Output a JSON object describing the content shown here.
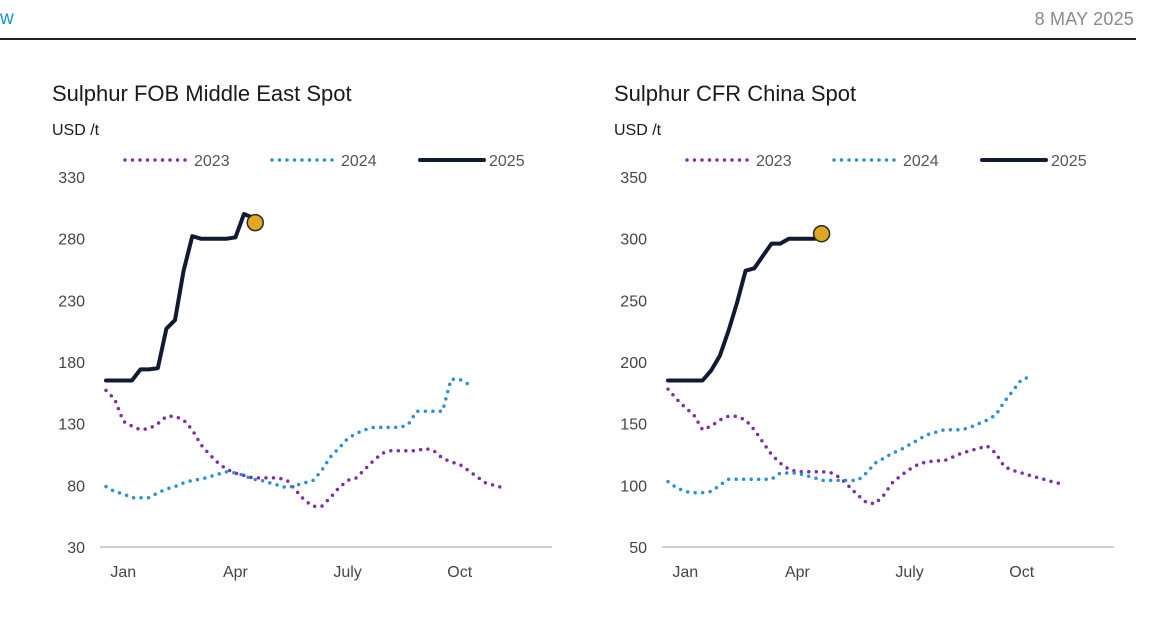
{
  "header": {
    "left_text": "w",
    "date": "8 MAY 2025"
  },
  "colors": {
    "s2023": "#7b2fa8",
    "s2024": "#2a8fd8",
    "s2025": "#111a33",
    "marker": "#e0a722"
  },
  "chart_data": [
    {
      "type": "line",
      "title": "Sulphur FOB Middle East Spot",
      "ylabel": "USD /t",
      "ylim": [
        30,
        330
      ],
      "yticks": [
        30,
        80,
        130,
        180,
        230,
        280,
        330
      ],
      "xlim": [
        1,
        52
      ],
      "xticks": [
        {
          "label": "Jan",
          "week": 3
        },
        {
          "label": "Apr",
          "week": 16
        },
        {
          "label": "July",
          "week": 29
        },
        {
          "label": "Oct",
          "week": 42
        }
      ],
      "legend": "top",
      "series": [
        {
          "name": "2023",
          "style": "dotted",
          "points": [
            [
              1,
              157
            ],
            [
              2,
              150
            ],
            [
              3,
              132
            ],
            [
              4,
              128
            ],
            [
              5,
              125
            ],
            [
              6,
              126
            ],
            [
              7,
              130
            ],
            [
              8,
              136
            ],
            [
              9,
              136
            ],
            [
              10,
              133
            ],
            [
              11,
              125
            ],
            [
              12,
              113
            ],
            [
              13,
              105
            ],
            [
              14,
              98
            ],
            [
              15,
              93
            ],
            [
              16,
              90
            ],
            [
              17,
              88
            ],
            [
              18,
              86
            ],
            [
              19,
              86
            ],
            [
              20,
              86
            ],
            [
              21,
              86
            ],
            [
              22,
              84
            ],
            [
              23,
              76
            ],
            [
              24,
              68
            ],
            [
              25,
              63
            ],
            [
              26,
              63
            ],
            [
              27,
              70
            ],
            [
              28,
              78
            ],
            [
              29,
              84
            ],
            [
              30,
              86
            ],
            [
              31,
              93
            ],
            [
              32,
              100
            ],
            [
              33,
              106
            ],
            [
              34,
              108
            ],
            [
              35,
              108
            ],
            [
              36,
              108
            ],
            [
              37,
              108
            ],
            [
              38,
              110
            ],
            [
              39,
              108
            ],
            [
              40,
              102
            ],
            [
              41,
              99
            ],
            [
              42,
              97
            ],
            [
              43,
              92
            ],
            [
              44,
              87
            ],
            [
              45,
              82
            ],
            [
              46,
              80
            ],
            [
              47,
              78
            ]
          ]
        },
        {
          "name": "2024",
          "style": "dotted",
          "points": [
            [
              1,
              79
            ],
            [
              2,
              75
            ],
            [
              3,
              73
            ],
            [
              4,
              70
            ],
            [
              5,
              70
            ],
            [
              6,
              70
            ],
            [
              7,
              74
            ],
            [
              8,
              77
            ],
            [
              9,
              79
            ],
            [
              10,
              82
            ],
            [
              11,
              84
            ],
            [
              12,
              85
            ],
            [
              13,
              87
            ],
            [
              14,
              89
            ],
            [
              15,
              91
            ],
            [
              16,
              90
            ],
            [
              17,
              88
            ],
            [
              18,
              85
            ],
            [
              19,
              84
            ],
            [
              20,
              82
            ],
            [
              21,
              80
            ],
            [
              22,
              78
            ],
            [
              23,
              80
            ],
            [
              24,
              82
            ],
            [
              25,
              84
            ],
            [
              26,
              92
            ],
            [
              27,
              103
            ],
            [
              28,
              110
            ],
            [
              29,
              118
            ],
            [
              30,
              122
            ],
            [
              31,
              125
            ],
            [
              32,
              127
            ],
            [
              33,
              127
            ],
            [
              34,
              127
            ],
            [
              35,
              127
            ],
            [
              36,
              129
            ],
            [
              37,
              140
            ],
            [
              38,
              140
            ],
            [
              39,
              140
            ],
            [
              40,
              140
            ],
            [
              41,
              166
            ],
            [
              42,
              166
            ],
            [
              43,
              162
            ]
          ]
        },
        {
          "name": "2025",
          "style": "solid",
          "points": [
            [
              1,
              165
            ],
            [
              2,
              165
            ],
            [
              3,
              165
            ],
            [
              4,
              165
            ],
            [
              5,
              174
            ],
            [
              6,
              174
            ],
            [
              7,
              175
            ],
            [
              8,
              207
            ],
            [
              9,
              214
            ],
            [
              10,
              254
            ],
            [
              11,
              282
            ],
            [
              12,
              280
            ],
            [
              13,
              280
            ],
            [
              14,
              280
            ],
            [
              15,
              280
            ],
            [
              16,
              281
            ],
            [
              17,
              300
            ],
            [
              18,
              297
            ]
          ]
        }
      ],
      "marker": {
        "series": "2025",
        "x": 18.3,
        "y": 293
      }
    },
    {
      "type": "line",
      "title": "Sulphur CFR China Spot",
      "ylabel": "USD /t",
      "ylim": [
        50,
        350
      ],
      "yticks": [
        50,
        100,
        150,
        200,
        250,
        300,
        350
      ],
      "xlim": [
        1,
        52
      ],
      "xticks": [
        {
          "label": "Jan",
          "week": 3
        },
        {
          "label": "Apr",
          "week": 16
        },
        {
          "label": "July",
          "week": 29
        },
        {
          "label": "Oct",
          "week": 42
        }
      ],
      "legend": "top",
      "series": [
        {
          "name": "2023",
          "style": "dotted",
          "points": [
            [
              1,
              178
            ],
            [
              2,
              170
            ],
            [
              3,
              163
            ],
            [
              4,
              157
            ],
            [
              5,
              145
            ],
            [
              6,
              148
            ],
            [
              7,
              153
            ],
            [
              8,
              156
            ],
            [
              9,
              156
            ],
            [
              10,
              153
            ],
            [
              11,
              145
            ],
            [
              12,
              135
            ],
            [
              13,
              125
            ],
            [
              14,
              118
            ],
            [
              15,
              113
            ],
            [
              16,
              111
            ],
            [
              17,
              111
            ],
            [
              18,
              111
            ],
            [
              19,
              111
            ],
            [
              20,
              110
            ],
            [
              21,
              106
            ],
            [
              22,
              99
            ],
            [
              23,
              92
            ],
            [
              24,
              86
            ],
            [
              25,
              85
            ],
            [
              26,
              92
            ],
            [
              27,
              102
            ],
            [
              28,
              108
            ],
            [
              29,
              113
            ],
            [
              30,
              117
            ],
            [
              31,
              119
            ],
            [
              32,
              120
            ],
            [
              33,
              120
            ],
            [
              34,
              123
            ],
            [
              35,
              126
            ],
            [
              36,
              128
            ],
            [
              37,
              130
            ],
            [
              38,
              132
            ],
            [
              39,
              126
            ],
            [
              40,
              115
            ],
            [
              41,
              112
            ],
            [
              42,
              110
            ],
            [
              43,
              108
            ],
            [
              44,
              106
            ],
            [
              45,
              104
            ],
            [
              46,
              102
            ],
            [
              47,
              101
            ]
          ]
        },
        {
          "name": "2024",
          "style": "dotted",
          "points": [
            [
              1,
              103
            ],
            [
              2,
              98
            ],
            [
              3,
              95
            ],
            [
              4,
              94
            ],
            [
              5,
              94
            ],
            [
              6,
              95
            ],
            [
              7,
              100
            ],
            [
              8,
              105
            ],
            [
              9,
              105
            ],
            [
              10,
              105
            ],
            [
              11,
              105
            ],
            [
              12,
              105
            ],
            [
              13,
              105
            ],
            [
              14,
              110
            ],
            [
              15,
              110
            ],
            [
              16,
              110
            ],
            [
              17,
              108
            ],
            [
              18,
              106
            ],
            [
              19,
              104
            ],
            [
              20,
              104
            ],
            [
              21,
              104
            ],
            [
              22,
              104
            ],
            [
              23,
              104
            ],
            [
              24,
              110
            ],
            [
              25,
              118
            ],
            [
              26,
              122
            ],
            [
              27,
              126
            ],
            [
              28,
              129
            ],
            [
              29,
              133
            ],
            [
              30,
              137
            ],
            [
              31,
              141
            ],
            [
              32,
              143
            ],
            [
              33,
              145
            ],
            [
              34,
              145
            ],
            [
              35,
              145
            ],
            [
              36,
              147
            ],
            [
              37,
              150
            ],
            [
              38,
              153
            ],
            [
              39,
              157
            ],
            [
              40,
              168
            ],
            [
              41,
              177
            ],
            [
              42,
              186
            ],
            [
              43,
              188
            ]
          ]
        },
        {
          "name": "2025",
          "style": "solid",
          "points": [
            [
              1,
              185
            ],
            [
              2,
              185
            ],
            [
              3,
              185
            ],
            [
              4,
              185
            ],
            [
              5,
              185
            ],
            [
              6,
              193
            ],
            [
              7,
              205
            ],
            [
              8,
              225
            ],
            [
              9,
              248
            ],
            [
              10,
              274
            ],
            [
              11,
              276
            ],
            [
              12,
              286
            ],
            [
              13,
              296
            ],
            [
              14,
              296
            ],
            [
              15,
              300
            ],
            [
              16,
              300
            ],
            [
              17,
              300
            ],
            [
              18,
              300
            ]
          ]
        }
      ],
      "marker": {
        "series": "2025",
        "x": 18.8,
        "y": 304
      }
    }
  ]
}
